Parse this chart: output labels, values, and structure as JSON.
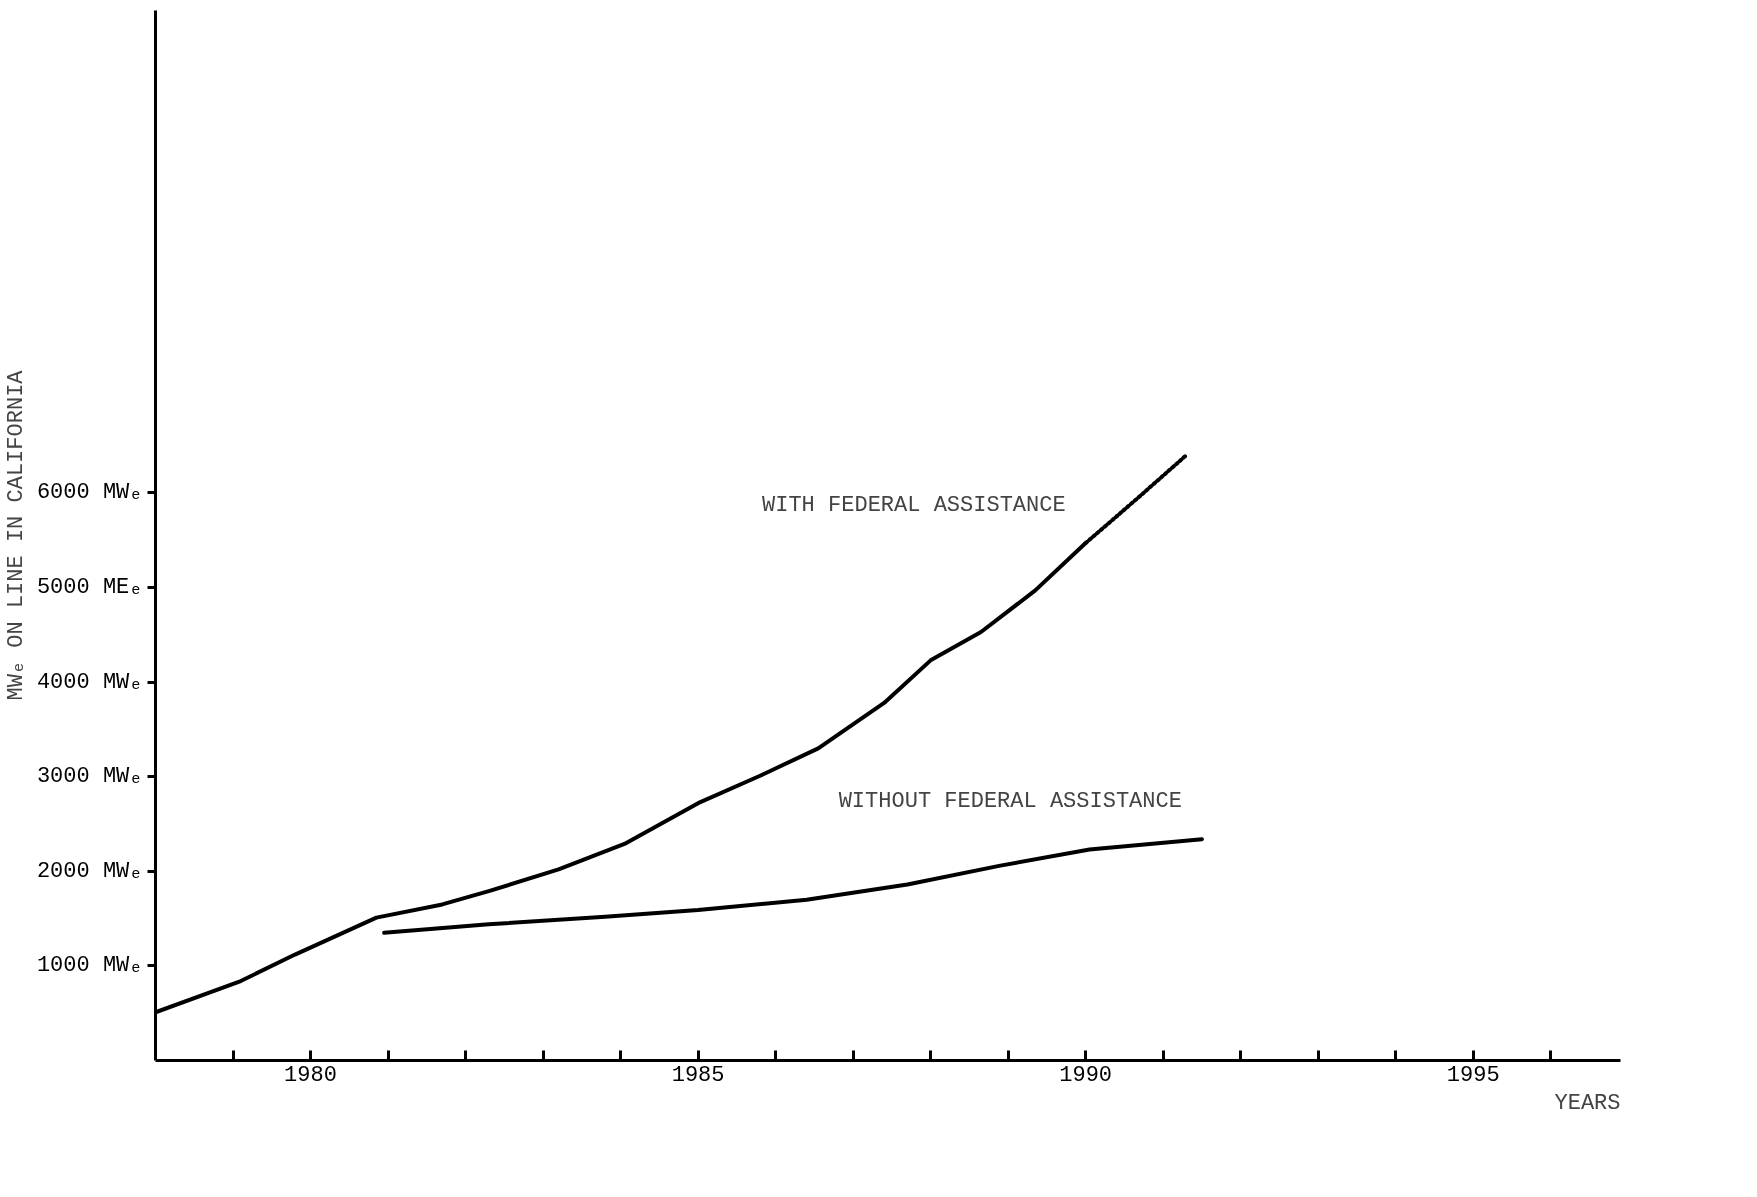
{
  "chart_data": {
    "type": "line",
    "xlabel": "YEARS",
    "ylabel": "MWₑ ON LINE IN CALIFORNIA",
    "xlim": [
      1978,
      1996.9
    ],
    "ylim": [
      0,
      11100
    ],
    "xticks": [
      {
        "value": 1979,
        "label": null
      },
      1980,
      {
        "value": 1981,
        "label": null
      },
      {
        "value": 1982,
        "label": null
      },
      {
        "value": 1983,
        "label": null
      },
      {
        "value": 1984,
        "label": null
      },
      1985,
      {
        "value": 1986,
        "label": null
      },
      {
        "value": 1987,
        "label": null
      },
      {
        "value": 1988,
        "label": null
      },
      {
        "value": 1989,
        "label": null
      },
      1990,
      {
        "value": 1991,
        "label": null
      },
      {
        "value": 1992,
        "label": null
      },
      {
        "value": 1993,
        "label": null
      },
      {
        "value": 1994,
        "label": null
      },
      1995,
      {
        "value": 1996,
        "label": null
      }
    ],
    "yticks": [
      {
        "value": 1000,
        "label": "1000 MWₑ"
      },
      {
        "value": 2000,
        "label": "2000 MWₑ"
      },
      {
        "value": 3000,
        "label": "3000 MWₑ"
      },
      {
        "value": 4000,
        "label": "4000 MWₑ"
      },
      {
        "value": 5000,
        "label": "5000 MEₑ"
      },
      {
        "value": 6000,
        "label": "6000 MWₑ"
      }
    ],
    "grid": false,
    "marker": "none",
    "series": [
      {
        "name": "WITH FEDERAL ASSISTANCE",
        "color": "#000000",
        "line_style": "solid",
        "x": [
          1978.0,
          1979.1,
          1979.8,
          1980.85,
          1981.7,
          1982.3,
          1983.2,
          1984.05,
          1985.0,
          1985.8,
          1986.55,
          1987.4,
          1988.0,
          1988.65,
          1989.35,
          1990.0
        ],
        "values": [
          510,
          840,
          1120,
          1510,
          1650,
          1790,
          2020,
          2290,
          2720,
          3010,
          3300,
          3780,
          4230,
          4530,
          4970,
          5470
        ]
      },
      {
        "color": "#000000",
        "line_style": "dotted",
        "x": [
          1990.0,
          1990.65,
          1991.3
        ],
        "values": [
          5470,
          5930,
          6400
        ]
      },
      {
        "name": "WITHOUT FEDERAL ASSISTANCE",
        "color": "#000000",
        "line_style": "solid",
        "x": [
          1980.95,
          1982.3,
          1983.8,
          1985.0,
          1986.4,
          1987.7,
          1988.9,
          1990.05,
          1991.5
        ],
        "values": [
          1350,
          1440,
          1520,
          1590,
          1700,
          1860,
          2060,
          2230,
          2340
        ]
      }
    ]
  }
}
